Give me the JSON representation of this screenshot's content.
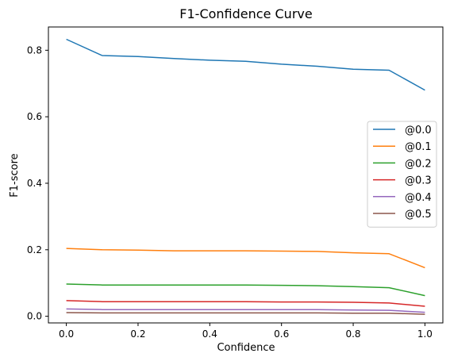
{
  "chart_data": {
    "type": "line",
    "title": "F1-Confidence Curve",
    "xlabel": "Confidence",
    "ylabel": "F1-score",
    "xlim": [
      -0.05,
      1.05
    ],
    "ylim": [
      -0.02,
      0.87
    ],
    "xticks": [
      0.0,
      0.2,
      0.4,
      0.6,
      0.8,
      1.0
    ],
    "yticks": [
      0.0,
      0.2,
      0.4,
      0.6,
      0.8
    ],
    "grid": false,
    "legend_position": "center-right",
    "x": [
      0.0,
      0.1,
      0.2,
      0.3,
      0.4,
      0.5,
      0.6,
      0.7,
      0.8,
      0.9,
      1.0
    ],
    "series": [
      {
        "name": "@0.0",
        "color": "#1f77b4",
        "values": [
          0.833,
          0.784,
          0.781,
          0.775,
          0.77,
          0.767,
          0.758,
          0.752,
          0.743,
          0.74,
          0.68
        ]
      },
      {
        "name": "@0.1",
        "color": "#ff7f0e",
        "values": [
          0.204,
          0.2,
          0.199,
          0.197,
          0.197,
          0.197,
          0.196,
          0.195,
          0.191,
          0.188,
          0.146
        ]
      },
      {
        "name": "@0.2",
        "color": "#2ca02c",
        "values": [
          0.097,
          0.094,
          0.094,
          0.094,
          0.094,
          0.094,
          0.093,
          0.092,
          0.089,
          0.086,
          0.062
        ]
      },
      {
        "name": "@0.3",
        "color": "#d62728",
        "values": [
          0.047,
          0.044,
          0.044,
          0.044,
          0.044,
          0.044,
          0.043,
          0.043,
          0.042,
          0.04,
          0.03
        ]
      },
      {
        "name": "@0.4",
        "color": "#9467bd",
        "values": [
          0.022,
          0.02,
          0.02,
          0.02,
          0.02,
          0.02,
          0.02,
          0.02,
          0.019,
          0.018,
          0.012
        ]
      },
      {
        "name": "@0.5",
        "color": "#8c564b",
        "values": [
          0.011,
          0.01,
          0.01,
          0.01,
          0.01,
          0.01,
          0.01,
          0.01,
          0.009,
          0.009,
          0.006
        ]
      }
    ]
  }
}
